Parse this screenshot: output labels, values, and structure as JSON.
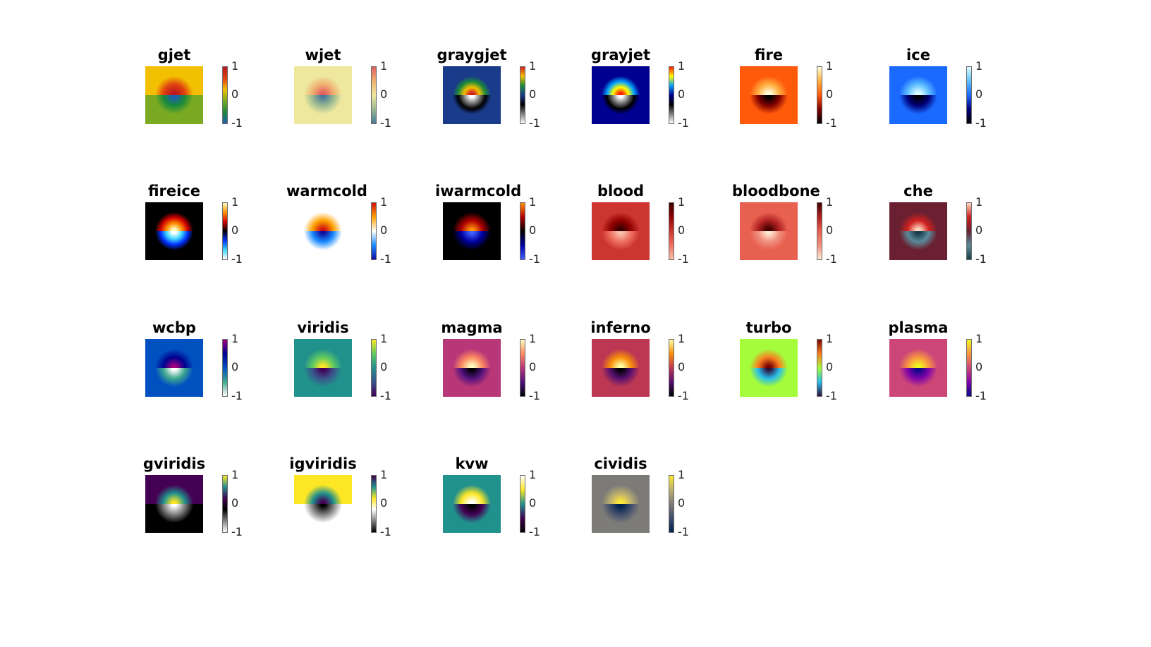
{
  "chart_data": {
    "type": "heatmap",
    "colorbar_ticks": [
      "1",
      "0",
      "-1"
    ],
    "clim": [
      -1,
      1
    ],
    "grid_columns": 6,
    "panels": [
      {
        "name": "gjet",
        "colors": [
          "#1f5fb0",
          "#1a8a3a",
          "#79aa22",
          "#f2c000",
          "#e04010",
          "#b8181c"
        ]
      },
      {
        "name": "wjet",
        "colors": [
          "#4a7a9a",
          "#9ab890",
          "#ede89e",
          "#f0b070",
          "#e06060"
        ]
      },
      {
        "name": "graygjet",
        "colors": [
          "#ffffff",
          "#808080",
          "#000000",
          "#1a3a8a",
          "#1c8a3a",
          "#f2c000",
          "#d02020"
        ]
      },
      {
        "name": "grayjet",
        "colors": [
          "#ffffff",
          "#808080",
          "#000000",
          "#000090",
          "#00a0ff",
          "#ffff00",
          "#ff2000"
        ]
      },
      {
        "name": "fire",
        "colors": [
          "#000000",
          "#800000",
          "#ff5a0a",
          "#ffb040",
          "#ffffe0"
        ]
      },
      {
        "name": "ice",
        "colors": [
          "#000000",
          "#00007a",
          "#1a6aff",
          "#60c0ff",
          "#e0ffff"
        ]
      },
      {
        "name": "fireice",
        "colors": [
          "#ffffff",
          "#40d8ff",
          "#0030ff",
          "#000000",
          "#d00000",
          "#ff9000",
          "#ffffc0"
        ]
      },
      {
        "name": "warmcold",
        "colors": [
          "#1010a0",
          "#1a8aff",
          "#ffffff",
          "#ffa000",
          "#d01010"
        ]
      },
      {
        "name": "iwarmcold",
        "colors": [
          "#4060ff",
          "#0000a0",
          "#000000",
          "#b00000",
          "#ff9000"
        ]
      },
      {
        "name": "blood",
        "colors": [
          "#f8c0b0",
          "#ee7060",
          "#cc3530",
          "#900000",
          "#3a0000"
        ]
      },
      {
        "name": "bloodbone",
        "colors": [
          "#ffe8d0",
          "#f09080",
          "#e86050",
          "#b02020",
          "#400000"
        ]
      },
      {
        "name": "che",
        "colors": [
          "#1a3a4a",
          "#5a8a9a",
          "#6a2030",
          "#d02020",
          "#ffd8c0"
        ]
      },
      {
        "name": "wcbp",
        "colors": [
          "#ffffff",
          "#40a890",
          "#0050c0",
          "#000090",
          "#a00080"
        ]
      },
      {
        "name": "viridis",
        "colors": [
          "#440154",
          "#3b528b",
          "#21918c",
          "#5ec962",
          "#fde725"
        ]
      },
      {
        "name": "magma",
        "colors": [
          "#000004",
          "#51127c",
          "#b73779",
          "#fc8961",
          "#fcfdbf"
        ]
      },
      {
        "name": "inferno",
        "colors": [
          "#000004",
          "#56106e",
          "#bb3754",
          "#f98e09",
          "#fcffa4"
        ]
      },
      {
        "name": "turbo",
        "colors": [
          "#30123b",
          "#28bceb",
          "#a4fc3b",
          "#fb7e21",
          "#7a0403"
        ]
      },
      {
        "name": "plasma",
        "colors": [
          "#0d0887",
          "#7e03a8",
          "#cc4778",
          "#f89540",
          "#f0f921"
        ]
      },
      {
        "name": "gviridis",
        "colors": [
          "#ffffff",
          "#808080",
          "#000000",
          "#440154",
          "#21918c",
          "#fde725"
        ]
      },
      {
        "name": "igviridis",
        "colors": [
          "#000000",
          "#808080",
          "#ffffff",
          "#fde725",
          "#21918c",
          "#440154"
        ]
      },
      {
        "name": "kvw",
        "colors": [
          "#000000",
          "#440154",
          "#21918c",
          "#fde725",
          "#ffffff"
        ]
      },
      {
        "name": "cividis",
        "colors": [
          "#00224e",
          "#414d6b",
          "#7c7b78",
          "#bcaf6f",
          "#fee838"
        ]
      }
    ]
  }
}
